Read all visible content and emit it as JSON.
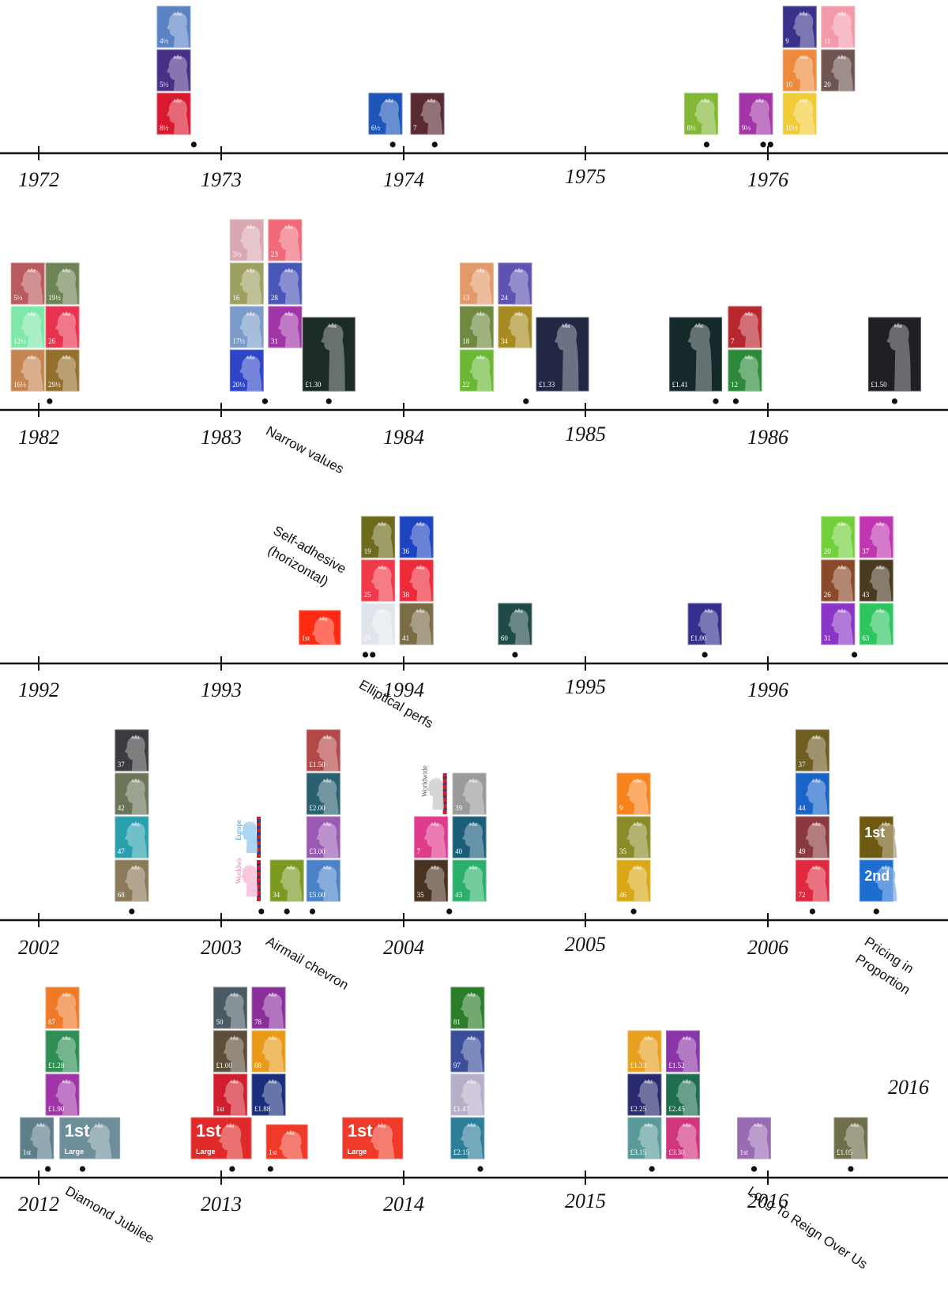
{
  "rows": [
    {
      "years": [
        {
          "label": "1972",
          "offset": 0
        },
        {
          "label": "1973",
          "offset": 0
        },
        {
          "label": "1974",
          "offset": 0
        },
        {
          "label": "1975",
          "offset": -4
        },
        {
          "label": "1976",
          "offset": 0
        }
      ],
      "dots": [
        4.85,
        5.94,
        6.17,
        7.66,
        7.97,
        8.01
      ],
      "notes": [],
      "stamps": [
        {
          "t": 4.74,
          "level": 0,
          "color": "#d9192f",
          "value": "8½"
        },
        {
          "t": 4.74,
          "level": 1,
          "color": "#4a2f86",
          "value": "5½"
        },
        {
          "t": 4.74,
          "level": 2,
          "color": "#5b83c4",
          "value": "4½"
        },
        {
          "t": 5.9,
          "level": 0,
          "color": "#1c56b8",
          "value": "6½"
        },
        {
          "t": 6.13,
          "level": 0,
          "color": "#5a2a32",
          "value": "7"
        },
        {
          "t": 7.63,
          "level": 0,
          "color": "#82b836",
          "value": "8½"
        },
        {
          "t": 7.93,
          "level": 0,
          "color": "#a335a8",
          "value": "9½"
        },
        {
          "t": 8.17,
          "level": 0,
          "color": "#f2cc38",
          "value": "10½"
        },
        {
          "t": 8.17,
          "level": 1,
          "color": "#ee8a3e",
          "value": "10"
        },
        {
          "t": 8.17,
          "level": 2,
          "color": "#3a318a",
          "value": "9"
        },
        {
          "t": 8.38,
          "level": 1,
          "color": "#6e5552",
          "value": "20"
        },
        {
          "t": 8.38,
          "level": 2,
          "color": "#f29aaa",
          "value": "11"
        }
      ]
    },
    {
      "years": [
        {
          "label": "1982",
          "offset": 0
        },
        {
          "label": "1983",
          "offset": 0
        },
        {
          "label": "1984",
          "offset": 0
        },
        {
          "label": "1985",
          "offset": -4
        },
        {
          "label": "1986",
          "offset": 0
        }
      ],
      "dots": [
        4.06,
        5.24,
        5.59,
        6.67,
        7.71,
        7.82,
        8.69
      ],
      "notes": [
        {
          "text": "Narrow values",
          "t": 5.24,
          "dy": 30,
          "rot": 28
        }
      ],
      "stamps": [
        {
          "t": 3.94,
          "level": 0,
          "color": "#c48552",
          "value": "16½"
        },
        {
          "t": 3.94,
          "level": 1,
          "color": "#7ee8a8",
          "value": "12½"
        },
        {
          "t": 3.94,
          "level": 2,
          "color": "#b95a5e",
          "value": "5½"
        },
        {
          "t": 4.13,
          "level": 0,
          "color": "#94702e",
          "value": "29½"
        },
        {
          "t": 4.13,
          "level": 1,
          "color": "#e8334f",
          "value": "26"
        },
        {
          "t": 4.13,
          "level": 2,
          "color": "#6f8455",
          "value": "19½"
        },
        {
          "t": 5.14,
          "level": 0,
          "color": "#2f45c8",
          "value": "20½"
        },
        {
          "t": 5.14,
          "level": 1,
          "color": "#7b9cc8",
          "value": "17½"
        },
        {
          "t": 5.14,
          "level": 2,
          "color": "#9ea062",
          "value": "16"
        },
        {
          "t": 5.14,
          "level": 3,
          "color": "#d9a8b2",
          "value": "3½"
        },
        {
          "t": 5.35,
          "level": 1,
          "color": "#a135a8",
          "value": "31"
        },
        {
          "t": 5.35,
          "level": 2,
          "color": "#4955b8",
          "value": "28"
        },
        {
          "t": 5.35,
          "level": 3,
          "color": "#f06a78",
          "value": "23"
        },
        {
          "t": 5.59,
          "level": 0,
          "color": "#1c2b24",
          "value": "£1.30",
          "size": "large"
        },
        {
          "t": 6.4,
          "level": 0,
          "color": "#6ab836",
          "value": "22"
        },
        {
          "t": 6.4,
          "level": 1,
          "color": "#6f8a40",
          "value": "18"
        },
        {
          "t": 6.4,
          "level": 2,
          "color": "#e39a6a",
          "value": "13"
        },
        {
          "t": 6.61,
          "level": 1,
          "color": "#a88a22",
          "value": "34"
        },
        {
          "t": 6.61,
          "level": 2,
          "color": "#5e52b2",
          "value": "24"
        },
        {
          "t": 6.87,
          "level": 0,
          "color": "#222844",
          "value": "£1.33",
          "size": "large"
        },
        {
          "t": 7.6,
          "level": 0,
          "color": "#15282a",
          "value": "£1.41",
          "size": "large"
        },
        {
          "t": 7.87,
          "level": 0,
          "color": "#2c8a3a",
          "value": "12"
        },
        {
          "t": 7.87,
          "level": 1,
          "color": "#b8262e",
          "value": "7"
        },
        {
          "t": 8.69,
          "level": 0,
          "color": "#1e2024",
          "value": "£1.50",
          "size": "large"
        }
      ]
    },
    {
      "years": [
        {
          "label": "1992",
          "offset": 0
        },
        {
          "label": "1993",
          "offset": 0
        },
        {
          "label": "1994",
          "offset": 0
        },
        {
          "label": "1995",
          "offset": -4
        },
        {
          "label": "1996",
          "offset": 0
        }
      ],
      "dots": [
        5.79,
        5.83,
        6.61,
        7.65,
        8.47
      ],
      "notes": [
        {
          "text": "Self-adhesive",
          "t": 5.28,
          "dy": -165,
          "rot": 30
        },
        {
          "text": "(horizontal)",
          "t": 5.25,
          "dy": -140,
          "rot": 30
        },
        {
          "text": "Elliptical perfs",
          "t": 5.75,
          "dy": 30,
          "rot": 30
        }
      ],
      "stamps": [
        {
          "t": 5.54,
          "level": 0,
          "color": "#ff2a12",
          "value": "1st",
          "size": "wide"
        },
        {
          "t": 5.86,
          "level": 0,
          "color": "#dfe5ea",
          "value": "29"
        },
        {
          "t": 5.86,
          "level": 1,
          "color": "#f0394a",
          "value": "25"
        },
        {
          "t": 5.86,
          "level": 2,
          "color": "#6e6a1c",
          "value": "19"
        },
        {
          "t": 6.07,
          "level": 0,
          "color": "#7a6c46",
          "value": "41"
        },
        {
          "t": 6.07,
          "level": 1,
          "color": "#ec2a3a",
          "value": "38"
        },
        {
          "t": 6.07,
          "level": 2,
          "color": "#1c44c0",
          "value": "36"
        },
        {
          "t": 6.61,
          "level": 0,
          "color": "#1e4a48",
          "value": "60"
        },
        {
          "t": 7.65,
          "level": 0,
          "color": "#35308e",
          "value": "£1.00"
        },
        {
          "t": 8.38,
          "level": 0,
          "color": "#8a35c8",
          "value": "31"
        },
        {
          "t": 8.38,
          "level": 1,
          "color": "#8a4a2a",
          "value": "26"
        },
        {
          "t": 8.38,
          "level": 2,
          "color": "#72d03a",
          "value": "20"
        },
        {
          "t": 8.59,
          "level": 0,
          "color": "#2ec460",
          "value": "63"
        },
        {
          "t": 8.59,
          "level": 1,
          "color": "#4a3a20",
          "value": "43"
        },
        {
          "t": 8.59,
          "level": 2,
          "color": "#c035b0",
          "value": "37"
        }
      ]
    },
    {
      "years": [
        {
          "label": "2002",
          "offset": 0
        },
        {
          "label": "2003",
          "offset": 0
        },
        {
          "label": "2004",
          "offset": 0
        },
        {
          "label": "2005",
          "offset": -4
        },
        {
          "label": "2006",
          "offset": 0
        },
        {
          "label": "2016",
          "offset": -32
        }
      ],
      "dots": [
        4.51,
        5.22,
        5.36,
        5.5,
        6.25,
        7.26,
        8.24,
        8.59
      ],
      "notes": [
        {
          "text": "Airmail chevron",
          "t": 5.24,
          "dy": 30,
          "rot": 30
        },
        {
          "text": "Pricing in",
          "t": 8.52,
          "dy": 30,
          "rot": 33
        },
        {
          "text": "Proportion",
          "t": 8.47,
          "dy": 52,
          "rot": 33
        }
      ],
      "stamps": [
        {
          "t": 4.51,
          "level": 0,
          "color": "#8a7a5a",
          "value": "68"
        },
        {
          "t": 4.51,
          "level": 1,
          "color": "#2a9fae",
          "value": "47"
        },
        {
          "t": 4.51,
          "level": 2,
          "color": "#6a7458",
          "value": "42"
        },
        {
          "t": 4.51,
          "level": 3,
          "color": "#3a3c40",
          "value": "37"
        },
        {
          "t": 5.13,
          "level": 0,
          "color": "#ee78b0",
          "value": "Worldwide",
          "kind": "airmail"
        },
        {
          "t": 5.13,
          "level": 1,
          "color": "#3a9ade",
          "value": "Europe",
          "kind": "airmail"
        },
        {
          "t": 5.36,
          "level": 0,
          "color": "#7a9a22",
          "value": "34"
        },
        {
          "t": 5.56,
          "level": 0,
          "color": "#4a82c8",
          "value": "£5.00"
        },
        {
          "t": 5.56,
          "level": 1,
          "color": "#9a5ab2",
          "value": "£3.00"
        },
        {
          "t": 5.56,
          "level": 2,
          "color": "#2a6070",
          "value": "£2.00"
        },
        {
          "t": 5.56,
          "level": 3,
          "color": "#b24848",
          "value": "£1.50"
        },
        {
          "t": 6.15,
          "level": 0,
          "color": "#4a3220",
          "value": "35"
        },
        {
          "t": 6.15,
          "level": 1,
          "color": "#e03a8c",
          "value": "7"
        },
        {
          "t": 6.15,
          "level": 2,
          "color": "#ffffff",
          "value": "Worldwide",
          "kind": "postcard"
        },
        {
          "t": 6.36,
          "level": 0,
          "color": "#2ab06a",
          "value": "43"
        },
        {
          "t": 6.36,
          "level": 1,
          "color": "#1a5e7a",
          "value": "40"
        },
        {
          "t": 6.36,
          "level": 2,
          "color": "#9a9a9a",
          "value": "39"
        },
        {
          "t": 7.26,
          "level": 0,
          "color": "#d8a818",
          "value": "46"
        },
        {
          "t": 7.26,
          "level": 1,
          "color": "#8a8a28",
          "value": "35"
        },
        {
          "t": 7.26,
          "level": 2,
          "color": "#f7821e",
          "value": "9"
        },
        {
          "t": 8.24,
          "level": 0,
          "color": "#e0283e",
          "value": "72"
        },
        {
          "t": 8.24,
          "level": 1,
          "color": "#8a3a3e",
          "value": "49"
        },
        {
          "t": 8.24,
          "level": 2,
          "color": "#1a64c8",
          "value": "44"
        },
        {
          "t": 8.24,
          "level": 3,
          "color": "#6e5e22",
          "value": "37"
        },
        {
          "t": 8.59,
          "level": 0,
          "color": "#1e6ed0",
          "value": "2nd",
          "kind": "big"
        },
        {
          "t": 8.59,
          "level": 1,
          "color": "#6e5a12",
          "value": "1st",
          "kind": "big"
        }
      ]
    },
    {
      "years": [
        {
          "label": "2012",
          "offset": 0
        },
        {
          "label": "2013",
          "offset": 0
        },
        {
          "label": "2014",
          "offset": 0
        },
        {
          "label": "2015",
          "offset": -4
        },
        {
          "label": "2016",
          "offset": -4
        }
      ],
      "dots": [
        4.05,
        4.24,
        5.06,
        5.27,
        6.42,
        7.36,
        7.92,
        8.45
      ],
      "notes": [
        {
          "text": "Diamond Jubilee",
          "t": 4.14,
          "dy": 20,
          "rot": 30
        },
        {
          "text": "Long To Reign Over Us",
          "t": 7.88,
          "dy": 20,
          "rot": 33
        }
      ],
      "stamps": [
        {
          "t": 3.99,
          "level": 0,
          "color": "#5e7e8a",
          "value": "1st"
        },
        {
          "t": 4.28,
          "level": 0,
          "color": "#6e8e9a",
          "value": "1st",
          "size": "wide",
          "kind": "big",
          "sub": "Large"
        },
        {
          "t": 4.13,
          "level": 1,
          "color": "#a035a8",
          "value": "£1.90"
        },
        {
          "t": 4.13,
          "level": 2,
          "color": "#2e8e54",
          "value": "£1.28"
        },
        {
          "t": 4.13,
          "level": 3,
          "color": "#ef7a28",
          "value": "87"
        },
        {
          "t": 5.0,
          "level": 0,
          "color": "#e02a2a",
          "value": "1st",
          "size": "wide",
          "kind": "big",
          "sub": "Large"
        },
        {
          "t": 5.05,
          "level": 1,
          "color": "#d01e2e",
          "value": "1st"
        },
        {
          "t": 5.05,
          "level": 2,
          "color": "#5e4e3a",
          "value": "£1.00"
        },
        {
          "t": 5.05,
          "level": 3,
          "color": "#4a5a64",
          "value": "50"
        },
        {
          "t": 5.26,
          "level": 1,
          "color": "#1a2e7e",
          "value": "£1.88"
        },
        {
          "t": 5.26,
          "level": 2,
          "color": "#e89a18",
          "value": "88"
        },
        {
          "t": 5.26,
          "level": 3,
          "color": "#8a2e9a",
          "value": "78"
        },
        {
          "t": 5.36,
          "level": 0,
          "color": "#ef3a2a",
          "value": "1st",
          "size": "wide"
        },
        {
          "t": 5.83,
          "level": 0,
          "color": "#ef3a2a",
          "value": "1st",
          "size": "wide",
          "kind": "big",
          "sub": "Large"
        },
        {
          "t": 6.35,
          "level": 0,
          "color": "#2e7e9a",
          "value": "£2.15"
        },
        {
          "t": 6.35,
          "level": 1,
          "color": "#b8aec8",
          "value": "£1.47"
        },
        {
          "t": 6.35,
          "level": 2,
          "color": "#3a4e9a",
          "value": "97"
        },
        {
          "t": 6.35,
          "level": 3,
          "color": "#2a7e2a",
          "value": "81"
        },
        {
          "t": 7.32,
          "level": 0,
          "color": "#5a9a9a",
          "value": "£3.15"
        },
        {
          "t": 7.32,
          "level": 1,
          "color": "#2a2a6e",
          "value": "£2.25"
        },
        {
          "t": 7.32,
          "level": 2,
          "color": "#e8a020",
          "value": "£1.33"
        },
        {
          "t": 7.53,
          "level": 0,
          "color": "#d0357e",
          "value": "£3.30"
        },
        {
          "t": 7.53,
          "level": 1,
          "color": "#1e6e50",
          "value": "£2.45"
        },
        {
          "t": 7.53,
          "level": 2,
          "color": "#8a35a8",
          "value": "£1.52"
        },
        {
          "t": 7.92,
          "level": 0,
          "color": "#9a6ab2",
          "value": "1st"
        },
        {
          "t": 8.45,
          "level": 0,
          "color": "#6e6e4a",
          "value": "£1.05"
        }
      ]
    }
  ]
}
